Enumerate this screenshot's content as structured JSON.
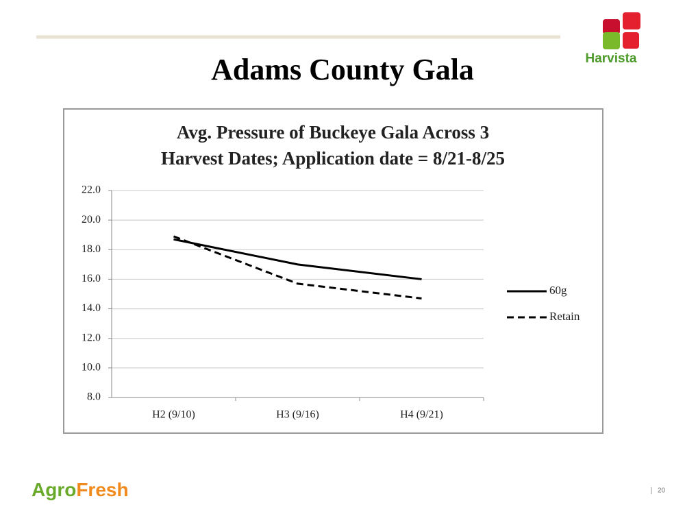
{
  "slide": {
    "title": "Adams County Gala",
    "brand_logo": "Harvista",
    "footer_logo": {
      "first": "Agro",
      "second": "Fresh"
    },
    "page_number": "20"
  },
  "chart_data": {
    "type": "line",
    "title": [
      "Avg. Pressure of Buckeye Gala Across 3",
      "Harvest Dates; Application date = 8/21-8/25"
    ],
    "categories": [
      "H2 (9/10)",
      "H3 (9/16)",
      "H4 (9/21)"
    ],
    "series": [
      {
        "name": "60g",
        "color": "#000000",
        "dash": "solid",
        "values": [
          18.7,
          17.0,
          16.0
        ]
      },
      {
        "name": "Retain",
        "color": "#000000",
        "dash": "dashed",
        "values": [
          18.9,
          15.7,
          14.7
        ]
      }
    ],
    "ylim": [
      8,
      22
    ],
    "yticks": [
      {
        "value": 8,
        "label": "8.0"
      },
      {
        "value": 10,
        "label": "10.0"
      },
      {
        "value": 12,
        "label": "12.0"
      },
      {
        "value": 14,
        "label": "14.0"
      },
      {
        "value": 16,
        "label": "16.0"
      },
      {
        "value": 18,
        "label": "18.0"
      },
      {
        "value": 20,
        "label": "20.0"
      },
      {
        "value": 22,
        "label": "22.0"
      }
    ],
    "grid": true,
    "legend": "right"
  }
}
